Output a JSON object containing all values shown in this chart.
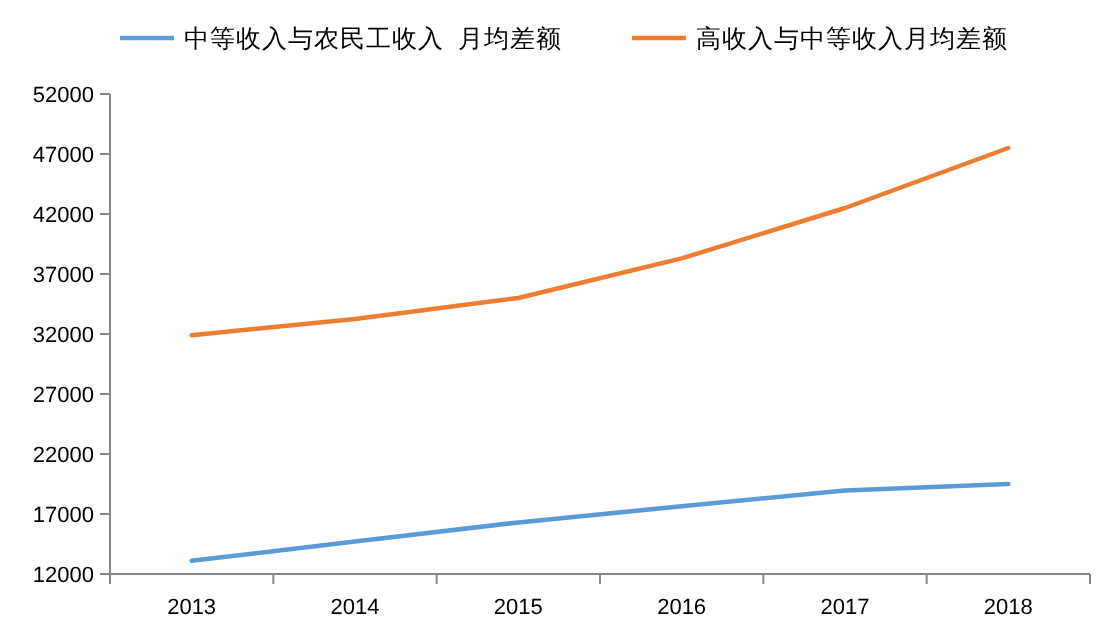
{
  "chart_data": {
    "type": "line",
    "categories": [
      "2013",
      "2014",
      "2015",
      "2016",
      "2017",
      "2018"
    ],
    "series": [
      {
        "name": "中等收入与农民工收入  月均差额",
        "color": "#5b9bd5",
        "values": [
          13100,
          14700,
          16300,
          17650,
          18950,
          19500
        ]
      },
      {
        "name": "高收入与中等收入月均差额",
        "color": "#ed7d31",
        "values": [
          31900,
          33250,
          35000,
          38300,
          42500,
          47500
        ]
      }
    ],
    "ylim": [
      12000,
      52000
    ],
    "yticks": [
      12000,
      17000,
      22000,
      27000,
      32000,
      37000,
      42000,
      47000,
      52000
    ],
    "grid": false,
    "legend": "top",
    "marker": "none",
    "line_style": "solid"
  }
}
